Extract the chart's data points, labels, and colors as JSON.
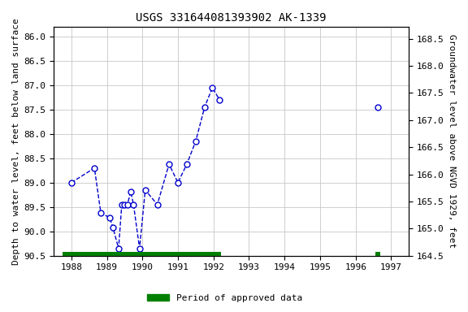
{
  "title": "USGS 331644081393902 AK-1339",
  "ylabel_left": "Depth to water level, feet below land surface",
  "ylabel_right": "Groundwater level above NGVD 1929, feet",
  "xlim": [
    1987.5,
    1997.5
  ],
  "ylim_left": [
    90.5,
    85.8
  ],
  "ylim_right": [
    164.5,
    168.72
  ],
  "yticks_left": [
    86.0,
    86.5,
    87.0,
    87.5,
    88.0,
    88.5,
    89.0,
    89.5,
    90.0,
    90.5
  ],
  "yticks_right": [
    164.5,
    165.0,
    165.5,
    166.0,
    166.5,
    167.0,
    167.5,
    168.0,
    168.5
  ],
  "xticks": [
    1988,
    1989,
    1990,
    1991,
    1992,
    1993,
    1994,
    1995,
    1996,
    1997
  ],
  "segment1_x": [
    1988.0,
    1988.65,
    1988.83,
    1989.08,
    1989.17,
    1989.33,
    1989.42,
    1989.5,
    1989.58,
    1989.67,
    1989.75,
    1989.92,
    1990.08,
    1990.42,
    1990.75,
    1991.0,
    1991.25,
    1991.5,
    1991.75,
    1991.97,
    1992.17
  ],
  "segment1_y": [
    89.0,
    88.7,
    89.62,
    89.72,
    89.92,
    90.35,
    89.45,
    89.45,
    89.45,
    89.18,
    89.45,
    90.35,
    89.15,
    89.45,
    88.62,
    89.0,
    88.62,
    88.15,
    87.45,
    87.05,
    87.3
  ],
  "segment2_x": [
    1996.62
  ],
  "segment2_y": [
    87.45
  ],
  "line_color": "#0000cc",
  "marker_facecolor": "#ffffff",
  "marker_edgecolor": "#0000cc",
  "marker_size": 5,
  "bg_color": "#ffffff",
  "grid_color": "#c8c8c8",
  "approved_bar_ranges": [
    [
      1987.75,
      1992.2
    ],
    [
      1996.55,
      1996.7
    ]
  ],
  "approved_bar_color": "#008000",
  "legend_label": "Period of approved data",
  "title_fontsize": 10,
  "axis_label_fontsize": 8,
  "tick_fontsize": 8
}
